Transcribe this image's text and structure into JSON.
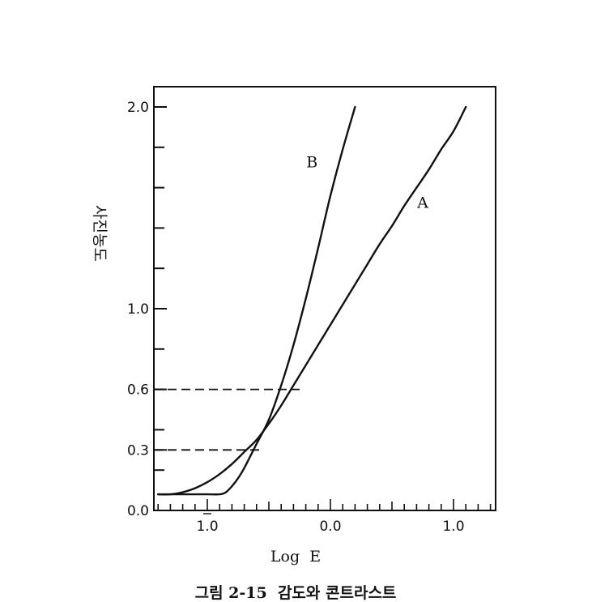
{
  "caption": "그림 2-15  감도와 콘트라스트",
  "chart_data": {
    "type": "line",
    "xlabel": "Log  E",
    "ylabel": "사진농도",
    "xlim": [
      -1.4,
      1.35
    ],
    "ylim": [
      0.0,
      2.0
    ],
    "x_ticks": [
      {
        "value": -1.0,
        "label": "1.0",
        "bar": true
      },
      {
        "value": 0.0,
        "label": "0.0",
        "bar": false
      },
      {
        "value": 1.0,
        "label": "1.0",
        "bar": false
      }
    ],
    "y_ticks": [
      {
        "value": 0.0,
        "label": "0.0"
      },
      {
        "value": 0.3,
        "label": "0.3"
      },
      {
        "value": 0.6,
        "label": "0.6"
      },
      {
        "value": 1.0,
        "label": "1.0"
      },
      {
        "value": 2.0,
        "label": "2.0"
      }
    ],
    "reference_lines": [
      {
        "y": 0.6,
        "x_end": -0.25,
        "style": "dashed"
      },
      {
        "y": 0.3,
        "x_end": -0.55,
        "style": "dashed"
      }
    ],
    "series": [
      {
        "name": "A",
        "color": "#111111",
        "x": [
          -1.4,
          -1.3,
          -1.2,
          -1.1,
          -1.0,
          -0.9,
          -0.8,
          -0.7,
          -0.6,
          -0.5,
          -0.4,
          -0.3,
          -0.2,
          -0.1,
          0.0,
          0.1,
          0.2,
          0.3,
          0.4,
          0.5,
          0.6,
          0.7,
          0.8,
          0.9,
          1.0,
          1.1
        ],
        "values": [
          0.08,
          0.08,
          0.09,
          0.11,
          0.14,
          0.18,
          0.23,
          0.29,
          0.35,
          0.43,
          0.52,
          0.62,
          0.72,
          0.82,
          0.92,
          1.02,
          1.12,
          1.22,
          1.32,
          1.41,
          1.51,
          1.6,
          1.69,
          1.79,
          1.88,
          2.0
        ]
      },
      {
        "name": "B",
        "color": "#111111",
        "x": [
          -1.4,
          -1.2,
          -1.0,
          -0.9,
          -0.85,
          -0.8,
          -0.75,
          -0.7,
          -0.6,
          -0.5,
          -0.4,
          -0.3,
          -0.2,
          -0.1,
          0.0,
          0.1,
          0.2
        ],
        "values": [
          0.08,
          0.08,
          0.08,
          0.08,
          0.09,
          0.12,
          0.16,
          0.21,
          0.33,
          0.45,
          0.62,
          0.82,
          1.05,
          1.3,
          1.56,
          1.79,
          2.0
        ]
      }
    ]
  }
}
